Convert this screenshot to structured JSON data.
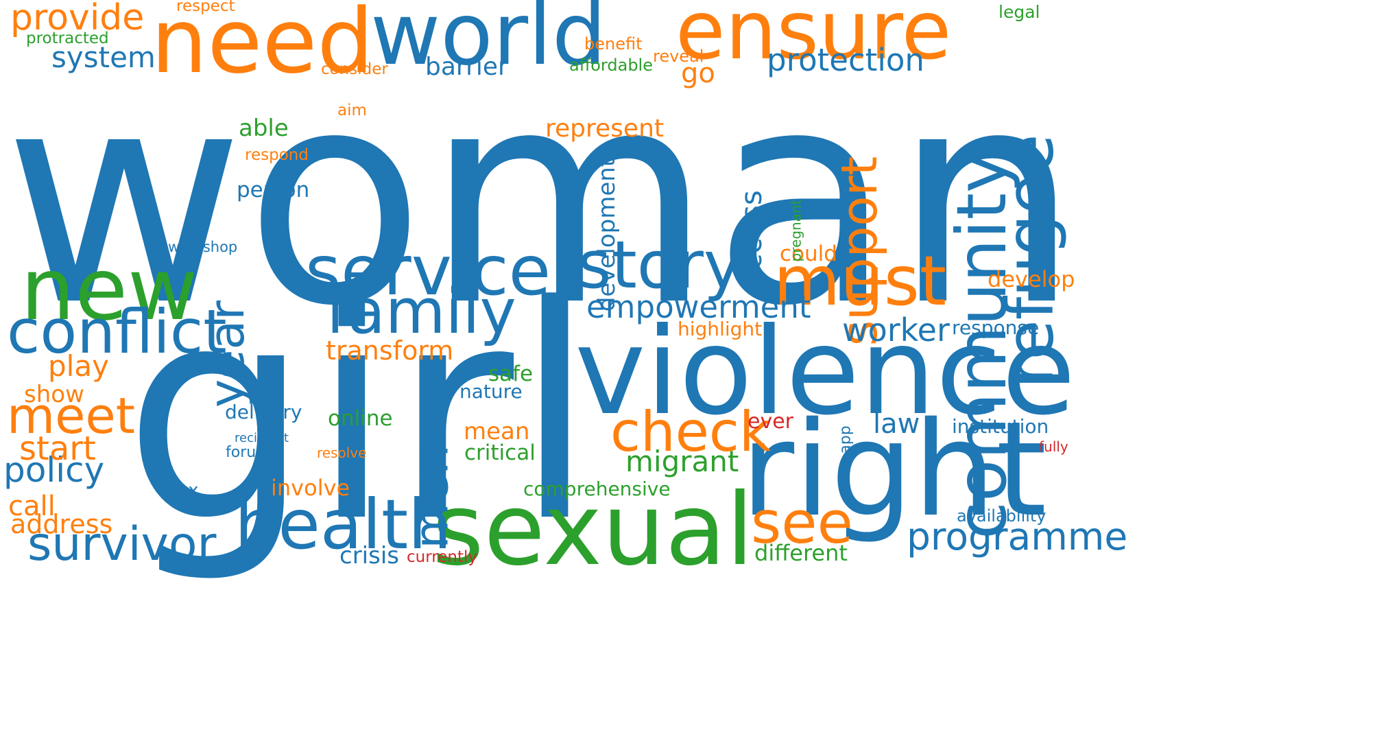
{
  "colors": {
    "blue": "#1f77b4",
    "orange": "#ff7f0e",
    "green": "#2ca02c",
    "red": "#d62728"
  },
  "words": [
    {
      "text": "woman",
      "color": "blue",
      "orientation": "horizontal"
    },
    {
      "text": "girl",
      "color": "blue",
      "orientation": "horizontal"
    },
    {
      "text": "violence",
      "color": "blue",
      "orientation": "horizontal"
    },
    {
      "text": "right",
      "color": "blue",
      "orientation": "horizontal"
    },
    {
      "text": "sexual",
      "color": "green",
      "orientation": "horizontal"
    },
    {
      "text": "need",
      "color": "orange",
      "orientation": "horizontal"
    },
    {
      "text": "world",
      "color": "blue",
      "orientation": "horizontal"
    },
    {
      "text": "ensure",
      "color": "orange",
      "orientation": "horizontal"
    },
    {
      "text": "new",
      "color": "green",
      "orientation": "horizontal"
    },
    {
      "text": "service",
      "color": "blue",
      "orientation": "horizontal"
    },
    {
      "text": "story",
      "color": "blue",
      "orientation": "horizontal"
    },
    {
      "text": "must",
      "color": "orange",
      "orientation": "horizontal"
    },
    {
      "text": "community",
      "color": "blue",
      "orientation": "vertical"
    },
    {
      "text": "refugee",
      "color": "blue",
      "orientation": "vertical"
    },
    {
      "text": "health",
      "color": "blue",
      "orientation": "horizontal"
    },
    {
      "text": "conflict",
      "color": "blue",
      "orientation": "horizontal"
    },
    {
      "text": "family",
      "color": "blue",
      "orientation": "horizontal"
    },
    {
      "text": "check",
      "color": "orange",
      "orientation": "horizontal"
    },
    {
      "text": "see",
      "color": "orange",
      "orientation": "horizontal"
    },
    {
      "text": "meet",
      "color": "orange",
      "orientation": "horizontal"
    },
    {
      "text": "survivor",
      "color": "blue",
      "orientation": "horizontal"
    },
    {
      "text": "year",
      "color": "blue",
      "orientation": "vertical"
    },
    {
      "text": "men",
      "color": "blue",
      "orientation": "vertical"
    },
    {
      "text": "support",
      "color": "orange",
      "orientation": "vertical"
    },
    {
      "text": "programme",
      "color": "blue",
      "orientation": "horizontal"
    },
    {
      "text": "provide",
      "color": "orange",
      "orientation": "horizontal"
    },
    {
      "text": "protection",
      "color": "blue",
      "orientation": "horizontal"
    },
    {
      "text": "empowerment",
      "color": "blue",
      "orientation": "horizontal"
    },
    {
      "text": "worker",
      "color": "blue",
      "orientation": "horizontal"
    },
    {
      "text": "policy",
      "color": "blue",
      "orientation": "horizontal"
    },
    {
      "text": "start",
      "color": "orange",
      "orientation": "horizontal"
    },
    {
      "text": "access",
      "color": "blue",
      "orientation": "vertical"
    },
    {
      "text": "development",
      "color": "blue",
      "orientation": "vertical"
    },
    {
      "text": "migrant",
      "color": "green",
      "orientation": "horizontal"
    },
    {
      "text": "system",
      "color": "blue",
      "orientation": "horizontal"
    },
    {
      "text": "transform",
      "color": "orange",
      "orientation": "horizontal"
    },
    {
      "text": "play",
      "color": "orange",
      "orientation": "horizontal"
    },
    {
      "text": "call",
      "color": "orange",
      "orientation": "horizontal"
    },
    {
      "text": "address",
      "color": "orange",
      "orientation": "horizontal"
    },
    {
      "text": "represent",
      "color": "orange",
      "orientation": "horizontal"
    },
    {
      "text": "barrier",
      "color": "blue",
      "orientation": "horizontal"
    },
    {
      "text": "able",
      "color": "green",
      "orientation": "horizontal"
    },
    {
      "text": "go",
      "color": "orange",
      "orientation": "horizontal"
    },
    {
      "text": "law",
      "color": "blue",
      "orientation": "horizontal"
    },
    {
      "text": "develop",
      "color": "orange",
      "orientation": "horizontal"
    },
    {
      "text": "mean",
      "color": "orange",
      "orientation": "horizontal"
    },
    {
      "text": "involve",
      "color": "orange",
      "orientation": "horizontal"
    },
    {
      "text": "different",
      "color": "green",
      "orientation": "horizontal"
    },
    {
      "text": "crisis",
      "color": "blue",
      "orientation": "horizontal"
    },
    {
      "text": "show",
      "color": "orange",
      "orientation": "horizontal"
    },
    {
      "text": "online",
      "color": "green",
      "orientation": "horizontal"
    },
    {
      "text": "critical",
      "color": "green",
      "orientation": "horizontal"
    },
    {
      "text": "safe",
      "color": "green",
      "orientation": "horizontal"
    },
    {
      "text": "person",
      "color": "blue",
      "orientation": "horizontal"
    },
    {
      "text": "could",
      "color": "orange",
      "orientation": "horizontal"
    },
    {
      "text": "institution",
      "color": "blue",
      "orientation": "horizontal"
    },
    {
      "text": "response",
      "color": "blue",
      "orientation": "horizontal"
    },
    {
      "text": "highlight",
      "color": "orange",
      "orientation": "horizontal"
    },
    {
      "text": "delivery",
      "color": "blue",
      "orientation": "horizontal"
    },
    {
      "text": "nature",
      "color": "blue",
      "orientation": "horizontal"
    },
    {
      "text": "comprehensive",
      "color": "green",
      "orientation": "horizontal"
    },
    {
      "text": "ever",
      "color": "red",
      "orientation": "horizontal"
    },
    {
      "text": "availability",
      "color": "blue",
      "orientation": "horizontal"
    },
    {
      "text": "affordable",
      "color": "green",
      "orientation": "horizontal"
    },
    {
      "text": "sex",
      "color": "blue",
      "orientation": "horizontal"
    },
    {
      "text": "reveal",
      "color": "orange",
      "orientation": "horizontal"
    },
    {
      "text": "legal",
      "color": "green",
      "orientation": "horizontal"
    },
    {
      "text": "benefit",
      "color": "orange",
      "orientation": "horizontal"
    },
    {
      "text": "aim",
      "color": "orange",
      "orientation": "horizontal"
    },
    {
      "text": "respect",
      "color": "orange",
      "orientation": "horizontal"
    },
    {
      "text": "protracted",
      "color": "green",
      "orientation": "horizontal"
    },
    {
      "text": "consider",
      "color": "orange",
      "orientation": "horizontal"
    },
    {
      "text": "respond",
      "color": "orange",
      "orientation": "horizontal"
    },
    {
      "text": "workshop",
      "color": "blue",
      "orientation": "horizontal"
    },
    {
      "text": "currently",
      "color": "red",
      "orientation": "horizontal"
    },
    {
      "text": "forum",
      "color": "blue",
      "orientation": "horizontal"
    },
    {
      "text": "resolve",
      "color": "orange",
      "orientation": "horizontal"
    },
    {
      "text": "recipient",
      "color": "blue",
      "orientation": "horizontal"
    },
    {
      "text": "fully",
      "color": "red",
      "orientation": "horizontal"
    },
    {
      "text": "pregnant",
      "color": "green",
      "orientation": "vertical"
    },
    {
      "text": "app",
      "color": "blue",
      "orientation": "vertical"
    }
  ]
}
